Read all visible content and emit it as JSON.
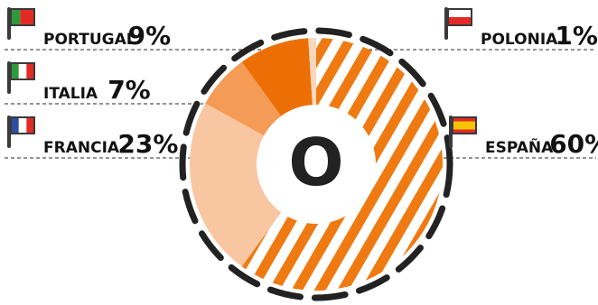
{
  "chart_data": {
    "type": "pie",
    "style": "donut",
    "center_symbol": "O",
    "slices": [
      {
        "label": "ESPAÑA",
        "value": 60,
        "value_label": "60%",
        "color": "#ee7a11",
        "pattern": "diagonal-stripes",
        "flag": "spain-flag",
        "legend_side": "right"
      },
      {
        "label": "FRANCIA",
        "value": 23,
        "value_label": "23%",
        "color": "#f9c6a2",
        "pattern": "solid",
        "flag": "france-flag",
        "legend_side": "left"
      },
      {
        "label": "ITALIA",
        "value": 7,
        "value_label": "7%",
        "color": "#f49b55",
        "pattern": "solid",
        "flag": "italy-flag",
        "legend_side": "left"
      },
      {
        "label": "PORTUGAL",
        "value": 9,
        "value_label": "9%",
        "color": "#ec6f06",
        "pattern": "solid",
        "flag": "portugal-flag",
        "legend_side": "left"
      },
      {
        "label": "POLONIA",
        "value": 1,
        "value_label": "1%",
        "color": "#f7d7bd",
        "pattern": "solid",
        "flag": "poland-flag",
        "legend_side": "right"
      }
    ],
    "flag_colors": {
      "spain": [
        "#e22b25",
        "#f5c400"
      ],
      "france": [
        "#2d4ea0",
        "#ffffff",
        "#e22b25"
      ],
      "italy": [
        "#2f9a3b",
        "#ffffff",
        "#e22b25"
      ],
      "portugal": [
        "#2f9a3b",
        "#e22b25"
      ],
      "poland": [
        "#ffffff",
        "#e22b25"
      ]
    },
    "colors": {
      "outline": "#222222",
      "leader_line": "#555555"
    }
  }
}
